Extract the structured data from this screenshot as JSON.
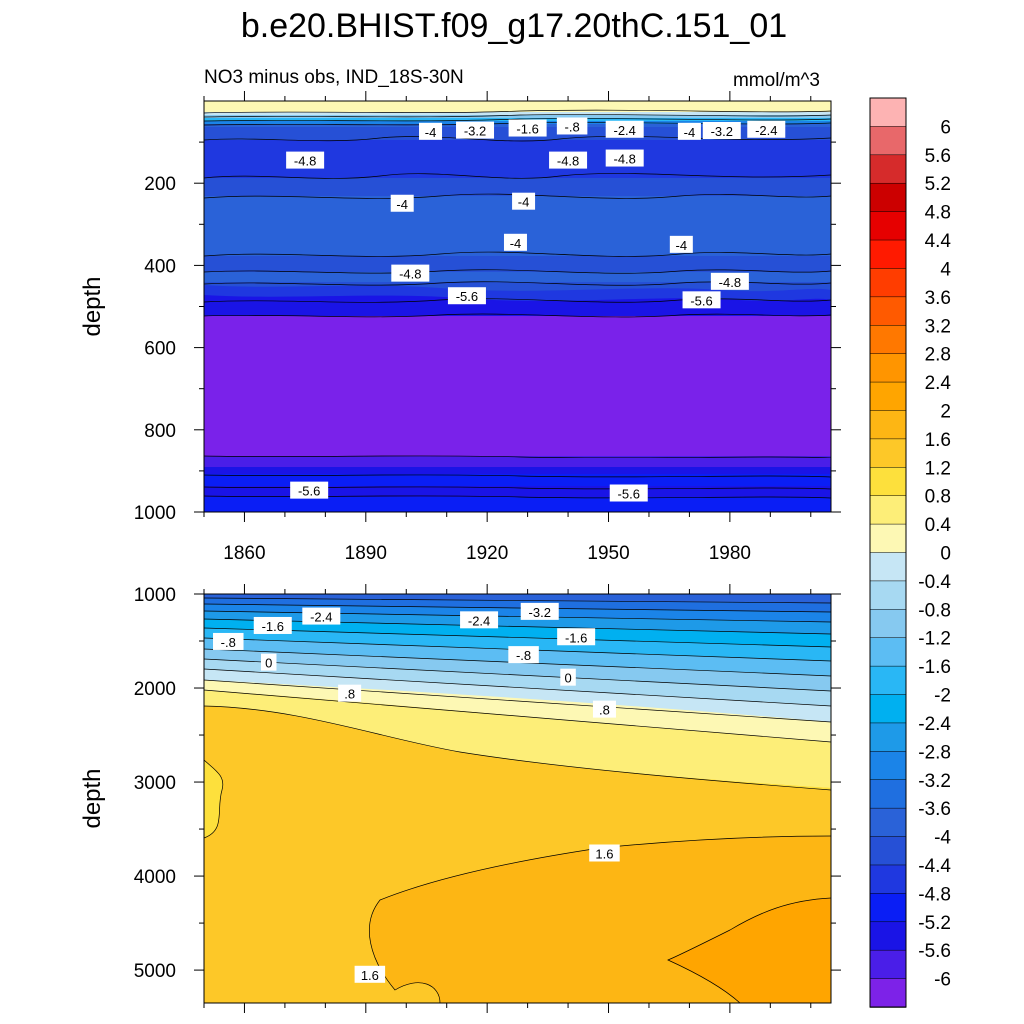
{
  "chart_data": {
    "type": "contour",
    "title": "b.e20.BHIST.f09_g17.20thC.151_01",
    "subtitle_left": "NO3 minus obs, IND_18S-30N",
    "subtitle_right": "mmol/m^3",
    "ylabel": "depth",
    "xticks": [
      "1860",
      "1890",
      "1920",
      "1950",
      "1980"
    ],
    "xtick_values": [
      1860,
      1890,
      1920,
      1950,
      1980
    ],
    "xlim": [
      1850,
      2005
    ],
    "upper_panel": {
      "ylim": [
        0,
        1000
      ],
      "yticks": [
        "200",
        "400",
        "600",
        "800",
        "1000"
      ],
      "ytick_values": [
        200,
        400,
        600,
        800,
        1000
      ],
      "contour_labels": [
        {
          "text": "-4",
          "x": 1906,
          "y": 75
        },
        {
          "text": "-3.2",
          "x": 1917,
          "y": 72
        },
        {
          "text": "-1.6",
          "x": 1930,
          "y": 67
        },
        {
          "text": "-.8",
          "x": 1941,
          "y": 62
        },
        {
          "text": "-2.4",
          "x": 1954,
          "y": 70
        },
        {
          "text": "-4",
          "x": 1970,
          "y": 75
        },
        {
          "text": "-3.2",
          "x": 1978,
          "y": 73
        },
        {
          "text": "-2.4",
          "x": 1989,
          "y": 70
        },
        {
          "text": "-4.8",
          "x": 1875,
          "y": 145
        },
        {
          "text": "-4.8",
          "x": 1940,
          "y": 145
        },
        {
          "text": "-4.8",
          "x": 1954,
          "y": 140
        },
        {
          "text": "-4",
          "x": 1899,
          "y": 250
        },
        {
          "text": "-4",
          "x": 1929,
          "y": 245
        },
        {
          "text": "-4",
          "x": 1927,
          "y": 345
        },
        {
          "text": "-4",
          "x": 1968,
          "y": 350
        },
        {
          "text": "-4.8",
          "x": 1901,
          "y": 420
        },
        {
          "text": "-4.8",
          "x": 1980,
          "y": 440
        },
        {
          "text": "-5.6",
          "x": 1915,
          "y": 475
        },
        {
          "text": "-5.6",
          "x": 1973,
          "y": 485
        },
        {
          "text": "-5.6",
          "x": 1876,
          "y": 948
        },
        {
          "text": "-5.6",
          "x": 1955,
          "y": 955
        }
      ]
    },
    "lower_panel": {
      "ylim": [
        1000,
        5350
      ],
      "yticks": [
        "1000",
        "2000",
        "3000",
        "4000",
        "5000"
      ],
      "ytick_values": [
        1000,
        2000,
        3000,
        4000,
        5000
      ],
      "contour_labels": [
        {
          "text": "-2.4",
          "x": 1879,
          "y": 1240
        },
        {
          "text": "-3.2",
          "x": 1933,
          "y": 1190
        },
        {
          "text": "-2.4",
          "x": 1918,
          "y": 1280
        },
        {
          "text": "-1.6",
          "x": 1867,
          "y": 1340
        },
        {
          "text": "-1.6",
          "x": 1942,
          "y": 1460
        },
        {
          "text": "-.8",
          "x": 1856,
          "y": 1510
        },
        {
          "text": "-.8",
          "x": 1929,
          "y": 1650
        },
        {
          "text": "0",
          "x": 1866,
          "y": 1730
        },
        {
          "text": "0",
          "x": 1940,
          "y": 1890
        },
        {
          "text": ".8",
          "x": 1886,
          "y": 2060
        },
        {
          "text": ".8",
          "x": 1949,
          "y": 2230
        },
        {
          "text": "1.6",
          "x": 1949,
          "y": 3760
        },
        {
          "text": "1.6",
          "x": 1891,
          "y": 5050
        }
      ]
    },
    "colorbar": {
      "levels": [
        "6",
        "5.6",
        "5.2",
        "4.8",
        "4.4",
        "4",
        "3.6",
        "3.2",
        "2.8",
        "2.4",
        "2",
        "1.6",
        "1.2",
        "0.8",
        "0.4",
        "0",
        "-0.4",
        "-0.8",
        "-1.2",
        "-1.6",
        "-2",
        "-2.4",
        "-2.8",
        "-3.2",
        "-3.6",
        "-4",
        "-4.4",
        "-4.8",
        "-5.2",
        "-5.6",
        "-6"
      ],
      "colors": [
        "#fdb3b3",
        "#e8686a",
        "#d62b2b",
        "#cc0000",
        "#e60000",
        "#ff1a00",
        "#ff3d00",
        "#ff5a00",
        "#ff7800",
        "#ff9500",
        "#ffa500",
        "#fdb614",
        "#fdc828",
        "#fde03c",
        "#fdee78",
        "#fdf8b4",
        "#c6e6f5",
        "#a7d9f2",
        "#86c9f0",
        "#5cbdf3",
        "#29b7f5",
        "#00b0f0",
        "#1e9ae8",
        "#1b84e8",
        "#1f6fe0",
        "#2a62d8",
        "#2650d6",
        "#1f38e0",
        "#0a1ef5",
        "#1a14e6",
        "#4a1ee8",
        "#7d22e8"
      ]
    }
  }
}
